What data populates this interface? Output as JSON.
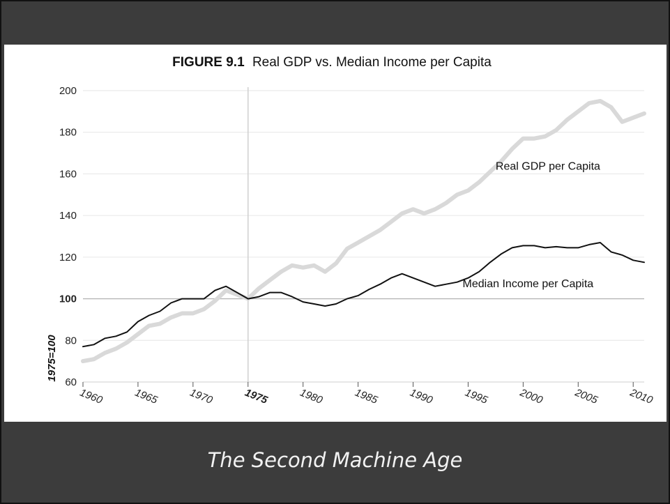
{
  "slide": {
    "caption": "The Second Machine Age",
    "colors": {
      "frame": "#3c3c3c",
      "panel": "#ffffff",
      "caption": "#f2f2f2"
    }
  },
  "chart_data": {
    "type": "line",
    "title_bold": "FIGURE 9.1",
    "title_rest": "Real GDP vs. Median Income per Capita",
    "ylabel": "1975=100",
    "xlabel": "",
    "xlim": [
      1960,
      2011
    ],
    "ylim": [
      60,
      200
    ],
    "y_ticks": [
      60,
      80,
      100,
      120,
      140,
      160,
      180,
      200
    ],
    "x_ticks": [
      1960,
      1965,
      1970,
      1975,
      1980,
      1985,
      1990,
      1995,
      2000,
      2005,
      2010
    ],
    "highlight_x": 1975,
    "highlight_y": 100,
    "grid": true,
    "x": [
      1960,
      1961,
      1962,
      1963,
      1964,
      1965,
      1966,
      1967,
      1968,
      1969,
      1970,
      1971,
      1972,
      1973,
      1974,
      1975,
      1976,
      1977,
      1978,
      1979,
      1980,
      1981,
      1982,
      1983,
      1984,
      1985,
      1986,
      1987,
      1988,
      1989,
      1990,
      1991,
      1992,
      1993,
      1994,
      1995,
      1996,
      1997,
      1998,
      1999,
      2000,
      2001,
      2002,
      2003,
      2004,
      2005,
      2006,
      2007,
      2008,
      2009,
      2010,
      2011
    ],
    "series": [
      {
        "name": "Real GDP per Capita",
        "color": "#d9d9d9",
        "values": [
          70,
          71,
          74,
          76,
          79,
          83,
          87,
          88,
          91,
          93,
          93,
          95,
          99,
          104,
          102,
          100,
          105,
          109,
          113,
          116,
          115,
          116,
          113,
          117,
          124,
          127,
          130,
          133,
          137,
          141,
          143,
          141,
          143,
          146,
          150,
          152,
          156,
          161,
          166,
          172,
          177,
          177,
          178,
          181,
          186,
          190,
          194,
          195,
          192,
          185,
          187,
          189
        ]
      },
      {
        "name": "Median Income per Capita",
        "color": "#111111",
        "values": [
          77,
          78,
          81,
          82,
          84,
          89,
          92,
          94,
          98,
          100,
          100,
          100,
          104,
          106,
          103,
          100,
          101,
          103,
          103,
          101,
          98.5,
          97.5,
          96.5,
          97.5,
          100,
          101.5,
          104.5,
          107,
          110,
          112,
          110,
          108,
          106,
          107,
          108,
          110,
          113,
          117.5,
          121.5,
          124.5,
          125.5,
          125.5,
          124.5,
          125,
          124.5,
          124.5,
          126,
          127,
          122.5,
          121,
          118.5,
          117.5
        ]
      }
    ]
  }
}
